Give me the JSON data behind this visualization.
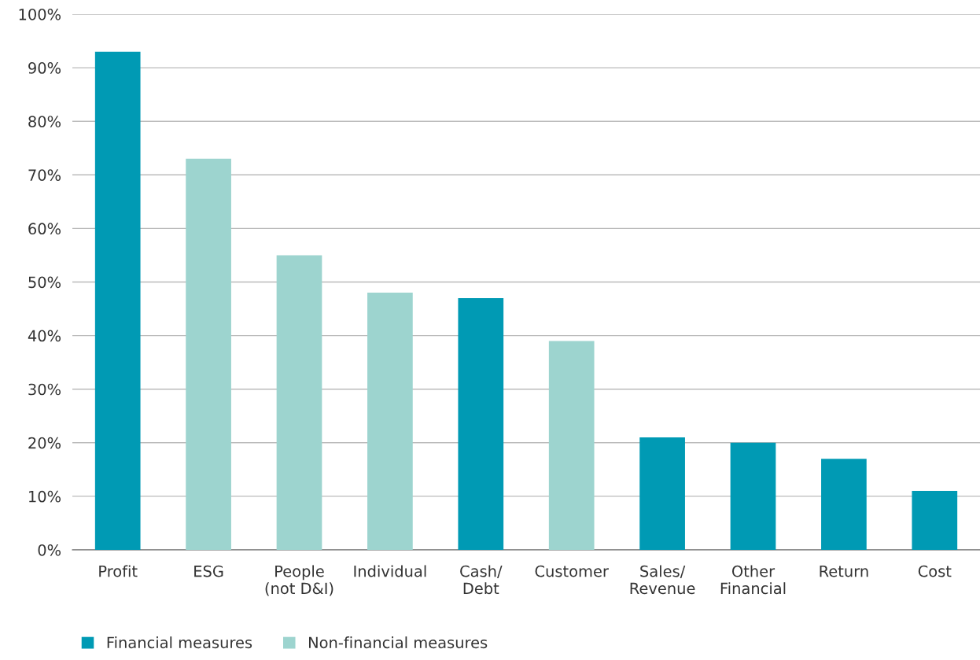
{
  "chart_data": {
    "type": "bar",
    "categories": [
      "Profit",
      "ESG",
      "People\n(not D&I)",
      "Individual",
      "Cash/\nDebt",
      "Customer",
      "Sales/\nRevenue",
      "Other\nFinancial",
      "Return",
      "Cost"
    ],
    "series": [
      {
        "name": "Financial measures",
        "color": "#009ab4",
        "values": [
          93,
          null,
          null,
          null,
          47,
          null,
          21,
          20,
          17,
          11
        ]
      },
      {
        "name": "Non-financial measures",
        "color": "#9dd4cf",
        "values": [
          null,
          73,
          55,
          48,
          null,
          39,
          null,
          null,
          null,
          null
        ]
      }
    ],
    "ylim": [
      0,
      100
    ],
    "yticks": [
      {
        "value": 0,
        "label": "0%"
      },
      {
        "value": 10,
        "label": "10%"
      },
      {
        "value": 20,
        "label": "20%"
      },
      {
        "value": 30,
        "label": "30%"
      },
      {
        "value": 40,
        "label": "40%"
      },
      {
        "value": 50,
        "label": "50%"
      },
      {
        "value": 60,
        "label": "60%"
      },
      {
        "value": 70,
        "label": "70%"
      },
      {
        "value": 80,
        "label": "80%"
      },
      {
        "value": 90,
        "label": "90%"
      },
      {
        "value": 100,
        "label": "100%"
      }
    ],
    "grid": "y",
    "legend": "bottom left"
  }
}
